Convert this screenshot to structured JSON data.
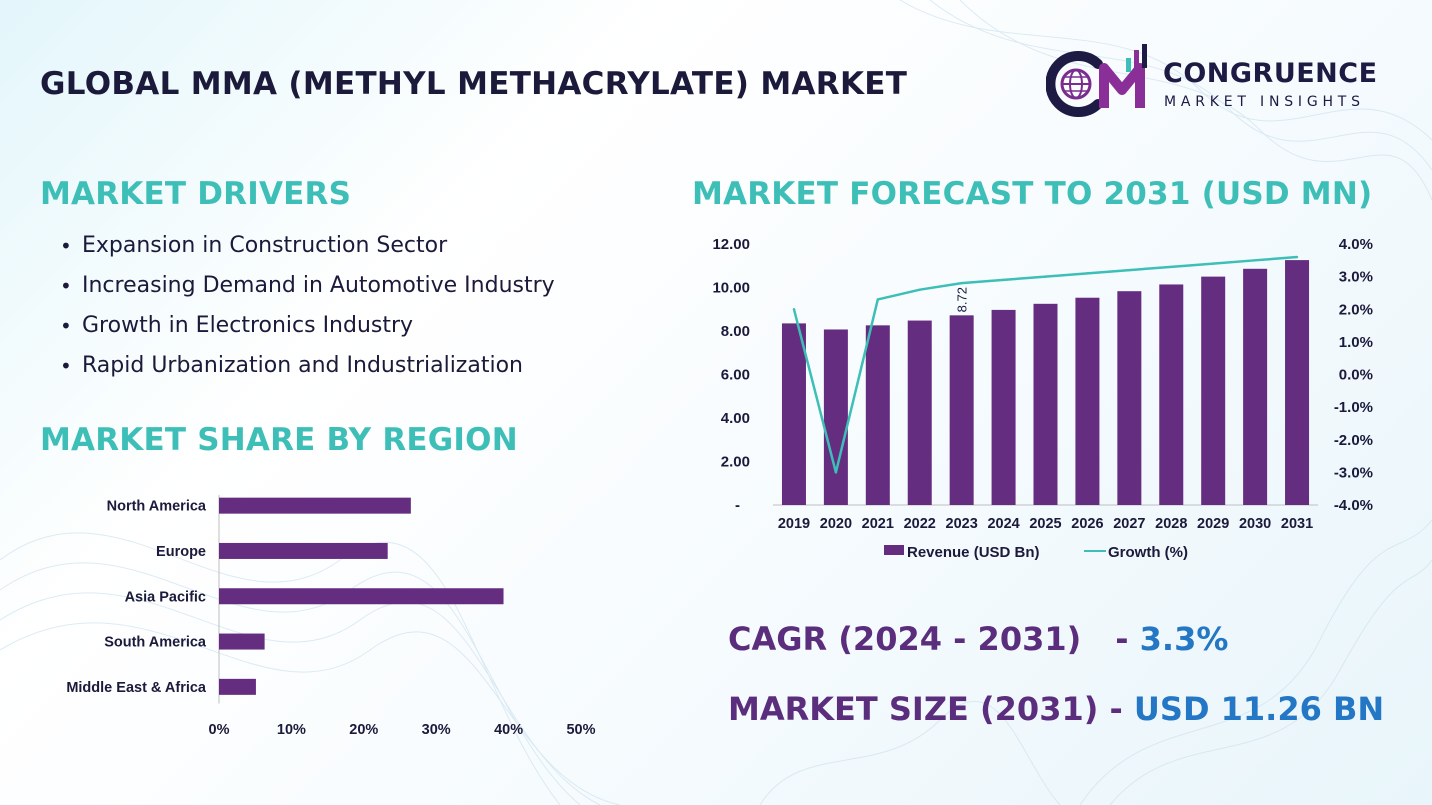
{
  "header": {
    "title": "GLOBAL MMA (METHYL METHACRYLATE) MARKET"
  },
  "logo": {
    "word": "CONGRUENCE",
    "sub": "MARKET INSIGHTS",
    "letters": "CM",
    "icon": "globe-icon"
  },
  "drivers": {
    "heading": "MARKET DRIVERS",
    "items": [
      "Expansion in Construction Sector",
      "Increasing Demand in Automotive Industry",
      "Growth in Electronics Industry",
      "Rapid Urbanization and Industrialization"
    ]
  },
  "share": {
    "heading": "MARKET SHARE BY REGION"
  },
  "forecast": {
    "heading": "MARKET FORECAST TO 2031 (USD MN)"
  },
  "summary": {
    "cagr_label": "CAGR (2024 - 2031)",
    "cagr_dash": "-",
    "cagr_value": "3.3%",
    "size_label": "MARKET SIZE (2031)",
    "size_dash": "-",
    "size_value": "USD 11.26 BN"
  },
  "colors": {
    "bar": "#652d80",
    "line": "#3dbfb8",
    "heading": "#3dbfb8",
    "title": "#1b1a3b",
    "highlight": "#2377c4"
  },
  "chart_data": [
    {
      "type": "bar",
      "orientation": "horizontal",
      "categories": [
        "North America",
        "Europe",
        "Asia Pacific",
        "South America",
        "Middle East & Africa"
      ],
      "values": [
        26.5,
        23.3,
        39.3,
        6.3,
        5.1
      ],
      "xlim": [
        0,
        50
      ],
      "x_ticks": [
        "0%",
        "10%",
        "20%",
        "30%",
        "40%",
        "50%"
      ],
      "grid": false
    },
    {
      "type": "bar+line",
      "categories": [
        "2019",
        "2020",
        "2021",
        "2022",
        "2023",
        "2024",
        "2025",
        "2026",
        "2027",
        "2028",
        "2029",
        "2030",
        "2031"
      ],
      "series": [
        {
          "name": "Revenue (USD Bn)",
          "type": "bar",
          "axis": "left",
          "values": [
            8.35,
            8.07,
            8.26,
            8.48,
            8.72,
            8.97,
            9.25,
            9.53,
            9.83,
            10.14,
            10.5,
            10.86,
            11.26
          ]
        },
        {
          "name": "Growth (%)",
          "type": "line",
          "axis": "right",
          "values": [
            2.0,
            -3.0,
            2.3,
            2.6,
            2.8,
            2.9,
            3.0,
            3.1,
            3.2,
            3.3,
            3.4,
            3.5,
            3.6
          ]
        }
      ],
      "data_labels": [
        {
          "category": "2023",
          "text": "8.72"
        }
      ],
      "ylim_left": [
        0,
        12
      ],
      "y_ticks_left": [
        "-",
        "2.00",
        "4.00",
        "6.00",
        "8.00",
        "10.00",
        "12.00"
      ],
      "ylim_right": [
        -4,
        4
      ],
      "y_ticks_right": [
        "-4.0%",
        "-3.0%",
        "-2.0%",
        "-1.0%",
        "0.0%",
        "1.0%",
        "2.0%",
        "3.0%",
        "4.0%"
      ],
      "legend": "bottom",
      "grid": false
    }
  ]
}
